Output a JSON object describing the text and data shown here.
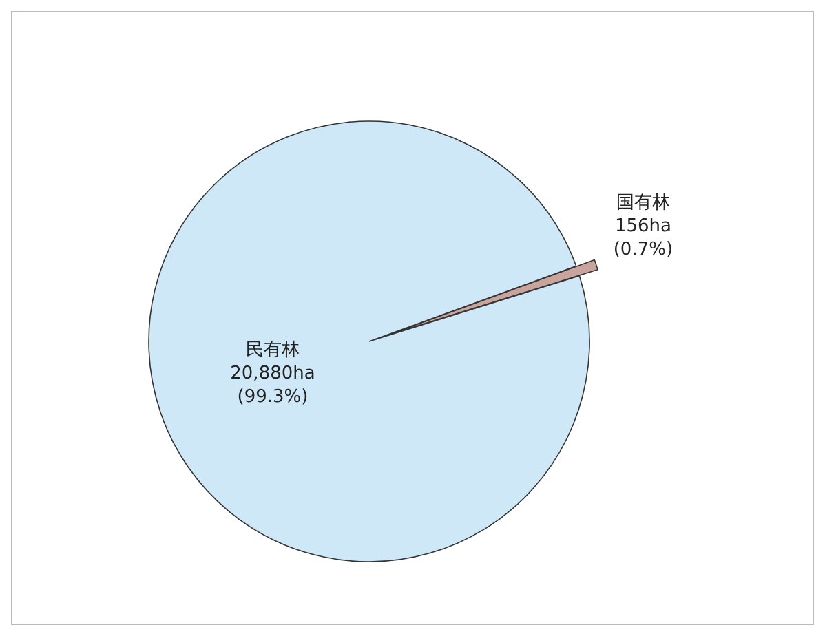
{
  "chart_data": {
    "type": "pie",
    "categories": [
      "国有林",
      "民有林"
    ],
    "values": [
      156,
      20880
    ],
    "colors": [
      "#c9a49c",
      "#cfe8f8"
    ],
    "value_labels": [
      "156ha\n(0.7%)",
      "20,880ha\n(99.3%)"
    ]
  }
}
